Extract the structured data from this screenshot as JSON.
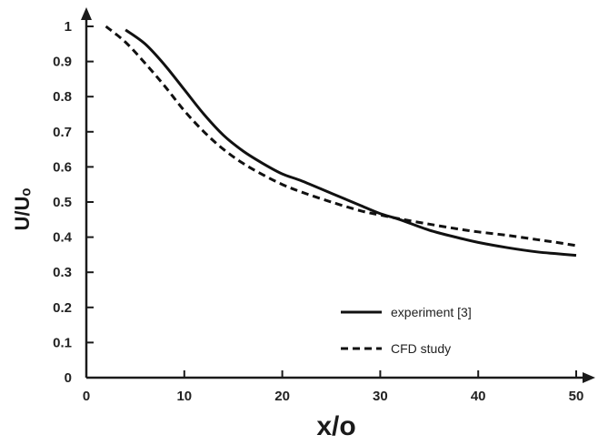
{
  "chart_data": {
    "type": "line",
    "xlabel": "x/o",
    "ylabel": "U/Uₒ",
    "xlim": [
      0,
      52
    ],
    "ylim": [
      0,
      1.05
    ],
    "x_ticks": [
      "0",
      "10",
      "20",
      "30",
      "40",
      "50"
    ],
    "y_ticks": [
      "0",
      "0.1",
      "0.2",
      "0.3",
      "0.4",
      "0.5",
      "0.6",
      "0.7",
      "0.8",
      "0.9",
      "1"
    ],
    "grid": false,
    "legend_position": "bottom-right",
    "series": [
      {
        "name": "experiment [3]",
        "style": "solid",
        "x": [
          4,
          6,
          8,
          10,
          12,
          14,
          16,
          18,
          20,
          22,
          25,
          28,
          30,
          32,
          35,
          38,
          40,
          43,
          46,
          48,
          50
        ],
        "y": [
          0.99,
          0.95,
          0.89,
          0.82,
          0.75,
          0.69,
          0.645,
          0.61,
          0.58,
          0.56,
          0.525,
          0.49,
          0.467,
          0.45,
          0.42,
          0.398,
          0.385,
          0.37,
          0.358,
          0.353,
          0.348
        ]
      },
      {
        "name": "CFD study",
        "style": "dashed",
        "x": [
          2,
          4,
          6,
          8,
          10,
          12,
          14,
          16,
          18,
          20,
          22,
          25,
          28,
          30,
          32,
          35,
          38,
          40,
          43,
          46,
          48,
          50
        ],
        "y": [
          1.0,
          0.955,
          0.895,
          0.83,
          0.76,
          0.7,
          0.65,
          0.61,
          0.578,
          0.55,
          0.528,
          0.5,
          0.475,
          0.463,
          0.452,
          0.437,
          0.423,
          0.415,
          0.405,
          0.393,
          0.385,
          0.376
        ]
      }
    ]
  },
  "colors": {
    "axis": "#1a1a1a",
    "line": "#111111"
  }
}
